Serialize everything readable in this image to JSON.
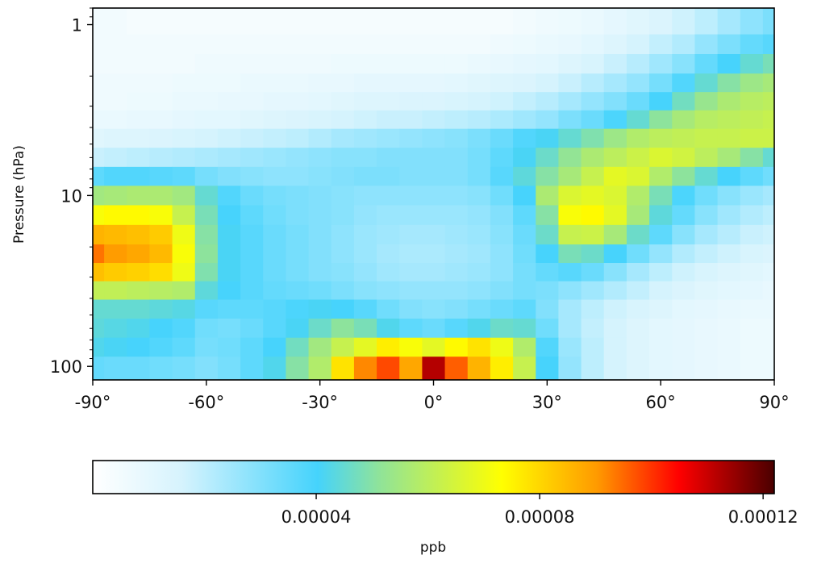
{
  "chart_data": {
    "type": "heatmap",
    "title": "",
    "xlabel": "",
    "ylabel": "Pressure (hPa)",
    "x_tick_labels": [
      "-90°",
      "-60°",
      "-30°",
      "0°",
      "30°",
      "60°",
      "90°"
    ],
    "x_tick_values": [
      -90,
      -60,
      -30,
      0,
      30,
      60,
      90
    ],
    "y_tick_labels": [
      "1",
      "10",
      "100"
    ],
    "y_tick_values": [
      1,
      10,
      100
    ],
    "y_scale": "log",
    "y_inverted": true,
    "xlim": [
      -90,
      90
    ],
    "ylim": [
      120,
      0.8
    ],
    "grid": false,
    "colorbar": {
      "label": "ppb",
      "orientation": "horizontal",
      "location": "bottom",
      "range": [
        0,
        0.000122
      ],
      "tick_labels": [
        "0.00004",
        "0.00008",
        "0.00012"
      ],
      "tick_values": [
        4e-05,
        8e-05,
        0.00012
      ],
      "colors": [
        "#ffffff",
        "#d6f3fd",
        "#45d3fc",
        "#8fe39a",
        "#ffff00",
        "#ff9a00",
        "#ff0000",
        "#4a0000"
      ],
      "color_positions": [
        0,
        0.13,
        0.33,
        0.42,
        0.6,
        0.74,
        0.86,
        1
      ]
    },
    "latitudes": [
      -90,
      -84,
      -78,
      -72,
      -66,
      -60,
      -54,
      -48,
      -42,
      -36,
      -30,
      -24,
      -18,
      -12,
      -6,
      0,
      6,
      12,
      18,
      24,
      30,
      36,
      42,
      48,
      54,
      60,
      66,
      72,
      78,
      84,
      90
    ],
    "pressures": [
      1,
      1.3,
      1.7,
      2.2,
      2.8,
      3.6,
      4.6,
      6,
      7.7,
      10,
      13,
      17,
      22,
      28,
      36,
      46,
      60,
      77,
      100
    ],
    "values": [
      [
        5e-06,
        5e-06,
        4e-06,
        4e-06,
        4e-06,
        4e-06,
        4e-06,
        4e-06,
        4e-06,
        4e-06,
        4e-06,
        4e-06,
        4e-06,
        4e-06,
        4e-06,
        4e-06,
        4e-06,
        4e-06,
        4e-06,
        5e-06,
        6e-06,
        7e-06,
        8e-06,
        1e-05,
        1.2e-05,
        1.4e-05,
        1.7e-05,
        2e-05,
        2.4e-05,
        2.8e-05,
        3.1e-05
      ],
      [
        5e-06,
        5e-06,
        5e-06,
        5e-06,
        5e-06,
        5e-06,
        5e-06,
        5e-06,
        5e-06,
        5e-06,
        5e-06,
        5e-06,
        5e-06,
        5e-06,
        5e-06,
        5e-06,
        5e-06,
        5e-06,
        6e-06,
        7e-06,
        8e-06,
        9e-06,
        1.1e-05,
        1.3e-05,
        1.6e-05,
        1.9e-05,
        2.2e-05,
        2.7e-05,
        3.1e-05,
        3.5e-05,
        3.7e-05
      ],
      [
        5e-06,
        5e-06,
        5e-06,
        5e-06,
        5e-06,
        6e-06,
        6e-06,
        6e-06,
        6e-06,
        6e-06,
        6e-06,
        7e-06,
        7e-06,
        7e-06,
        7e-06,
        7e-06,
        7e-06,
        8e-06,
        9e-06,
        1e-05,
        1.1e-05,
        1.3e-05,
        1.5e-05,
        1.8e-05,
        2.1e-05,
        2.5e-05,
        2.9e-05,
        3.5e-05,
        4e-05,
        4.5e-05,
        4.8e-05
      ],
      [
        6e-06,
        6e-06,
        6e-06,
        6e-06,
        7e-06,
        7e-06,
        7e-06,
        8e-06,
        8e-06,
        8e-06,
        9e-06,
        9e-06,
        1e-05,
        1e-05,
        1e-05,
        1e-05,
        1.1e-05,
        1.2e-05,
        1.3e-05,
        1.4e-05,
        1.6e-05,
        1.8e-05,
        2.1e-05,
        2.4e-05,
        2.7e-05,
        3.2e-05,
        3.8e-05,
        4.5e-05,
        5e-05,
        5.4e-05,
        5.6e-05
      ],
      [
        6e-06,
        6e-06,
        7e-06,
        7e-06,
        8e-06,
        8e-06,
        9e-06,
        9e-06,
        1e-05,
        1e-05,
        1.1e-05,
        1.2e-05,
        1.3e-05,
        1.3e-05,
        1.4e-05,
        1.4e-05,
        1.5e-05,
        1.6e-05,
        1.7e-05,
        1.9e-05,
        2.1e-05,
        2.4e-05,
        2.7e-05,
        3e-05,
        3.4e-05,
        4e-05,
        4.7e-05,
        5.3e-05,
        5.7e-05,
        5.9e-05,
        6e-05
      ],
      [
        8e-06,
        8e-06,
        9e-06,
        9e-06,
        1e-05,
        1.1e-05,
        1.1e-05,
        1.2e-05,
        1.3e-05,
        1.4e-05,
        1.5e-05,
        1.6e-05,
        1.7e-05,
        1.8e-05,
        1.8e-05,
        1.9e-05,
        2e-05,
        2.1e-05,
        2.3e-05,
        2.5e-05,
        2.7e-05,
        3.1e-05,
        3.4e-05,
        3.9e-05,
        4.5e-05,
        5.1e-05,
        5.6e-05,
        5.9e-05,
        6e-05,
        6.1e-05,
        6.2e-05
      ],
      [
        1.2e-05,
        1.3e-05,
        1.3e-05,
        1.4e-05,
        1.5e-05,
        1.6e-05,
        1.7e-05,
        1.8e-05,
        1.9e-05,
        2e-05,
        2.2e-05,
        2.4e-05,
        2.5e-05,
        2.6e-05,
        2.7e-05,
        2.8e-05,
        2.9e-05,
        3.1e-05,
        3.4e-05,
        3.8e-05,
        4.1e-05,
        4.5e-05,
        4.9e-05,
        5.4e-05,
        5.8e-05,
        6e-05,
        6.1e-05,
        6.2e-05,
        6.2e-05,
        6.3e-05,
        6.3e-05
      ],
      [
        1.8e-05,
        1.9e-05,
        2e-05,
        2.1e-05,
        2.2e-05,
        2.3e-05,
        2.4e-05,
        2.5e-05,
        2.6e-05,
        2.7e-05,
        2.8e-05,
        2.9e-05,
        2.9e-05,
        3e-05,
        3e-05,
        3e-05,
        3e-05,
        3.2e-05,
        3.6e-05,
        4.1e-05,
        4.6e-05,
        5.2e-05,
        5.7e-05,
        6e-05,
        6.3e-05,
        6.6e-05,
        6.4e-05,
        6e-05,
        5.6e-05,
        5e-05,
        4.5e-05
      ],
      [
        3.6e-05,
        3.8e-05,
        3.8e-05,
        3.7e-05,
        3.6e-05,
        3.2e-05,
        3e-05,
        2.9e-05,
        2.8e-05,
        2.8e-05,
        2.9e-05,
        3e-05,
        3.1e-05,
        3.1e-05,
        3e-05,
        3e-05,
        3e-05,
        3.2e-05,
        3.7e-05,
        4.4e-05,
        5e-05,
        5.6e-05,
        6.2e-05,
        6.8e-05,
        6.6e-05,
        5.8e-05,
        5.1e-05,
        4.5e-05,
        4e-05,
        3.6e-05,
        3.3e-05
      ],
      [
        5.5e-05,
        5.6e-05,
        5.7e-05,
        5.7e-05,
        5.5e-05,
        4.5e-05,
        3.8e-05,
        3.4e-05,
        3.2e-05,
        3.1e-05,
        3e-05,
        2.9e-05,
        2.8e-05,
        2.8e-05,
        2.8e-05,
        2.8e-05,
        2.8e-05,
        2.9e-05,
        3.3e-05,
        4e-05,
        5.7e-05,
        6.6e-05,
        6.8e-05,
        6.6e-05,
        5.8e-05,
        4.8e-05,
        3.9e-05,
        3.3e-05,
        2.9e-05,
        2.6e-05,
        2.4e-05
      ],
      [
        7.2e-05,
        7.4e-05,
        7.4e-05,
        7.2e-05,
        6.2e-05,
        4.8e-05,
        4e-05,
        3.6e-05,
        3.3e-05,
        3.1e-05,
        3e-05,
        2.9e-05,
        2.7e-05,
        2.6e-05,
        2.6e-05,
        2.6e-05,
        2.6e-05,
        2.7e-05,
        3e-05,
        3.6e-05,
        5e-05,
        7.2e-05,
        7.4e-05,
        6.8e-05,
        5.6e-05,
        4.4e-05,
        3.5e-05,
        2.9e-05,
        2.5e-05,
        2.2e-05,
        2e-05
      ],
      [
        8.6e-05,
        8.5e-05,
        8.4e-05,
        8.2e-05,
        7e-05,
        5e-05,
        4.1e-05,
        3.7e-05,
        3.4e-05,
        3.2e-05,
        3e-05,
        2.8e-05,
        2.6e-05,
        2.5e-05,
        2.4e-05,
        2.4e-05,
        2.5e-05,
        2.6e-05,
        2.9e-05,
        3.4e-05,
        4.6e-05,
        6.2e-05,
        6.3e-05,
        5.6e-05,
        4.6e-05,
        3.6e-05,
        2.9e-05,
        2.4e-05,
        2.1e-05,
        1.8e-05,
        1.7e-05
      ],
      [
        9.4e-05,
        9e-05,
        8.8e-05,
        8.5e-05,
        7.2e-05,
        5.1e-05,
        4.1e-05,
        3.7e-05,
        3.4e-05,
        3.2e-05,
        3e-05,
        2.8e-05,
        2.6e-05,
        2.4e-05,
        2.3e-05,
        2.3e-05,
        2.4e-05,
        2.5e-05,
        2.8e-05,
        3.3e-05,
        4e-05,
        4.8e-05,
        4.6e-05,
        4e-05,
        3.3e-05,
        2.7e-05,
        2.2e-05,
        1.9e-05,
        1.7e-05,
        1.5e-05,
        1.4e-05
      ],
      [
        8.4e-05,
        8.2e-05,
        8.1e-05,
        7.9e-05,
        7e-05,
        4.9e-05,
        4.1e-05,
        3.7e-05,
        3.4e-05,
        3.2e-05,
        3e-05,
        2.9e-05,
        2.7e-05,
        2.5e-05,
        2.4e-05,
        2.4e-05,
        2.5e-05,
        2.6e-05,
        2.8e-05,
        3.2e-05,
        3.5e-05,
        3.7e-05,
        3.4e-05,
        2.9e-05,
        2.4e-05,
        2e-05,
        1.7e-05,
        1.5e-05,
        1.3e-05,
        1.2e-05,
        1.1e-05
      ],
      [
        6.1e-05,
        6.1e-05,
        6e-05,
        5.9e-05,
        5.8e-05,
        4.4e-05,
        4e-05,
        3.7e-05,
        3.5e-05,
        3.4e-05,
        3.3e-05,
        3.1e-05,
        2.9e-05,
        2.8e-05,
        2.7e-05,
        2.7e-05,
        2.7e-05,
        2.8e-05,
        3e-05,
        3.2e-05,
        3.1e-05,
        2.8e-05,
        2.5e-05,
        2.2e-05,
        1.9e-05,
        1.6e-05,
        1.4e-05,
        1.2e-05,
        1.1e-05,
        1e-05,
        9e-06
      ],
      [
        4.5e-05,
        4.5e-05,
        4.5e-05,
        4.4e-05,
        4.3e-05,
        3.7e-05,
        3.6e-05,
        3.6e-05,
        3.7e-05,
        3.9e-05,
        4.1e-05,
        4e-05,
        3.7e-05,
        3.3e-05,
        3e-05,
        2.9e-05,
        3e-05,
        3.2e-05,
        3.4e-05,
        3.6e-05,
        3e-05,
        2.4e-05,
        2e-05,
        1.7e-05,
        1.5e-05,
        1.3e-05,
        1.1e-05,
        1e-05,
        9e-06,
        8e-06,
        8e-06
      ],
      [
        4.4e-05,
        4.3e-05,
        4.2e-05,
        4e-05,
        3.8e-05,
        3.3e-05,
        3.2e-05,
        3.4e-05,
        3.7e-05,
        4.1e-05,
        4.6e-05,
        5.1e-05,
        4.8e-05,
        4.2e-05,
        3.6e-05,
        3.4e-05,
        3.7e-05,
        4.2e-05,
        4.6e-05,
        4.5e-05,
        3.3e-05,
        2.4e-05,
        1.9e-05,
        1.6e-05,
        1.3e-05,
        1.1e-05,
        1e-05,
        9e-06,
        8e-06,
        7e-06,
        7e-06
      ],
      [
        4.2e-05,
        4.1e-05,
        4e-05,
        3.8e-05,
        3.6e-05,
        3.2e-05,
        3.3e-05,
        3.6e-05,
        4e-05,
        4.7e-05,
        5.5e-05,
        6.2e-05,
        6.8e-05,
        7.6e-05,
        7.2e-05,
        6.8e-05,
        7.4e-05,
        7.8e-05,
        7e-05,
        5.8e-05,
        3.8e-05,
        2.6e-05,
        2e-05,
        1.6e-05,
        1.3e-05,
        1.1e-05,
        1e-05,
        9e-06,
        8e-06,
        7e-06,
        7e-06
      ],
      [
        3.5e-05,
        3.4e-05,
        3.4e-05,
        3.3e-05,
        3.2e-05,
        3e-05,
        3.2e-05,
        3.6e-05,
        4.2e-05,
        5e-05,
        5.8e-05,
        7.8e-05,
        9.2e-05,
        9.8e-05,
        8.8e-05,
        0.000112,
        9.6e-05,
        8.6e-05,
        7.6e-05,
        6.2e-05,
        4e-05,
        2.7e-05,
        2e-05,
        1.6e-05,
        1.3e-05,
        1.1e-05,
        1e-05,
        9e-06,
        8e-06,
        7e-06,
        7e-06
      ]
    ]
  }
}
